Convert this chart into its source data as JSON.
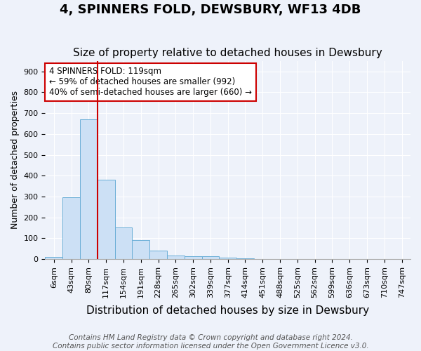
{
  "title": "4, SPINNERS FOLD, DEWSBURY, WF13 4DB",
  "subtitle": "Size of property relative to detached houses in Dewsbury",
  "xlabel": "Distribution of detached houses by size in Dewsbury",
  "ylabel": "Number of detached properties",
  "bar_values": [
    10,
    295,
    670,
    380,
    152,
    92,
    40,
    16,
    15,
    12,
    8,
    5,
    0,
    0,
    0,
    0,
    0,
    0,
    0,
    0,
    0
  ],
  "bar_labels": [
    "6sqm",
    "43sqm",
    "80sqm",
    "117sqm",
    "154sqm",
    "191sqm",
    "228sqm",
    "265sqm",
    "302sqm",
    "339sqm",
    "377sqm",
    "414sqm",
    "451sqm",
    "488sqm",
    "525sqm",
    "562sqm",
    "599sqm",
    "636sqm",
    "673sqm",
    "710sqm",
    "747sqm"
  ],
  "bar_color": "#cce0f5",
  "bar_edge_color": "#6aaed6",
  "vline_color": "#cc0000",
  "vline_x_index": 3,
  "annotation_lines": [
    "4 SPINNERS FOLD: 119sqm",
    "← 59% of detached houses are smaller (992)",
    "40% of semi-detached houses are larger (660) →"
  ],
  "annotation_box_edgecolor": "#cc0000",
  "ylim": [
    0,
    950
  ],
  "yticks": [
    0,
    100,
    200,
    300,
    400,
    500,
    600,
    700,
    800,
    900
  ],
  "footer_line1": "Contains HM Land Registry data © Crown copyright and database right 2024.",
  "footer_line2": "Contains public sector information licensed under the Open Government Licence v3.0.",
  "background_color": "#eef2fa",
  "plot_bg_color": "#eef2fa",
  "grid_color": "#ffffff",
  "title_fontsize": 13,
  "subtitle_fontsize": 11,
  "xlabel_fontsize": 11,
  "ylabel_fontsize": 9,
  "tick_fontsize": 8,
  "footer_fontsize": 7.5
}
